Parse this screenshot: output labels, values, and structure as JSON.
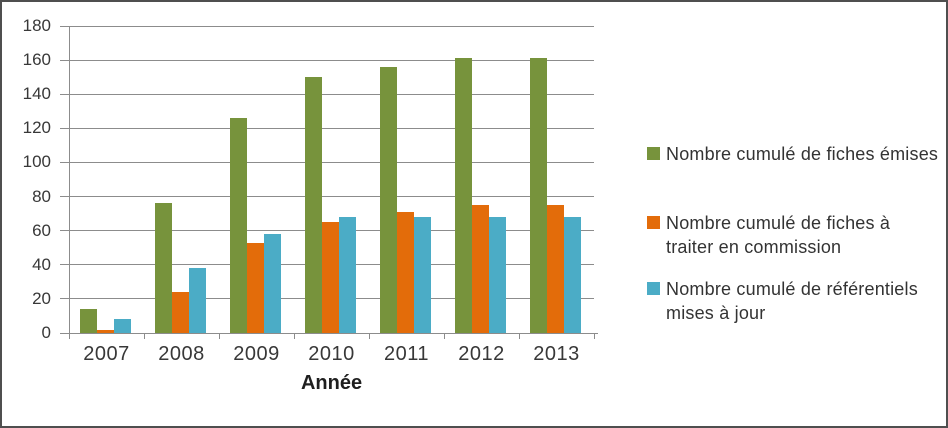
{
  "window": {
    "background": "#FFFFFF",
    "border_color": "#4F4F4F"
  },
  "chart_data": {
    "type": "bar",
    "title": "",
    "xlabel": "Année",
    "ylabel": "",
    "categories": [
      "2007",
      "2008",
      "2009",
      "2010",
      "2011",
      "2012",
      "2013"
    ],
    "series": [
      {
        "name": "Nombre cumulé de fiches émises",
        "color": "#77933C",
        "values": [
          14,
          76,
          126,
          150,
          156,
          161,
          161
        ]
      },
      {
        "name": "Nombre cumulé de fiches à traiter en commission",
        "color": "#E36C0A",
        "values": [
          2,
          24,
          53,
          65,
          71,
          75,
          75
        ]
      },
      {
        "name": "Nombre cumulé de référentiels mises à jour",
        "color": "#4BACC6",
        "values": [
          8,
          38,
          58,
          68,
          68,
          68,
          68
        ]
      }
    ],
    "ylim": [
      0,
      180
    ],
    "ytick_step": 20,
    "yticks": [
      0,
      20,
      40,
      60,
      80,
      100,
      120,
      140,
      160,
      180
    ],
    "grid": true,
    "grid_color": "#8C8C8C",
    "axis_color": "#8C8C8C",
    "legend_position": "right"
  },
  "legend": {
    "items": [
      {
        "label": "Nombre cumulé de fiches émises",
        "display": "Nombre cumulé de fiches émises",
        "color": "#77933C"
      },
      {
        "label": "Nombre cumulé de fiches à traiter en commission",
        "display": "Nombre cumulé de fiches à\ntraiter en commission",
        "color": "#E36C0A"
      },
      {
        "label": "Nombre cumulé de référentiels mises à jour",
        "display": "Nombre cumulé de référentiels\nmises à jour",
        "color": "#4BACC6"
      }
    ]
  },
  "axis_labels": {
    "x_title": "Année"
  }
}
